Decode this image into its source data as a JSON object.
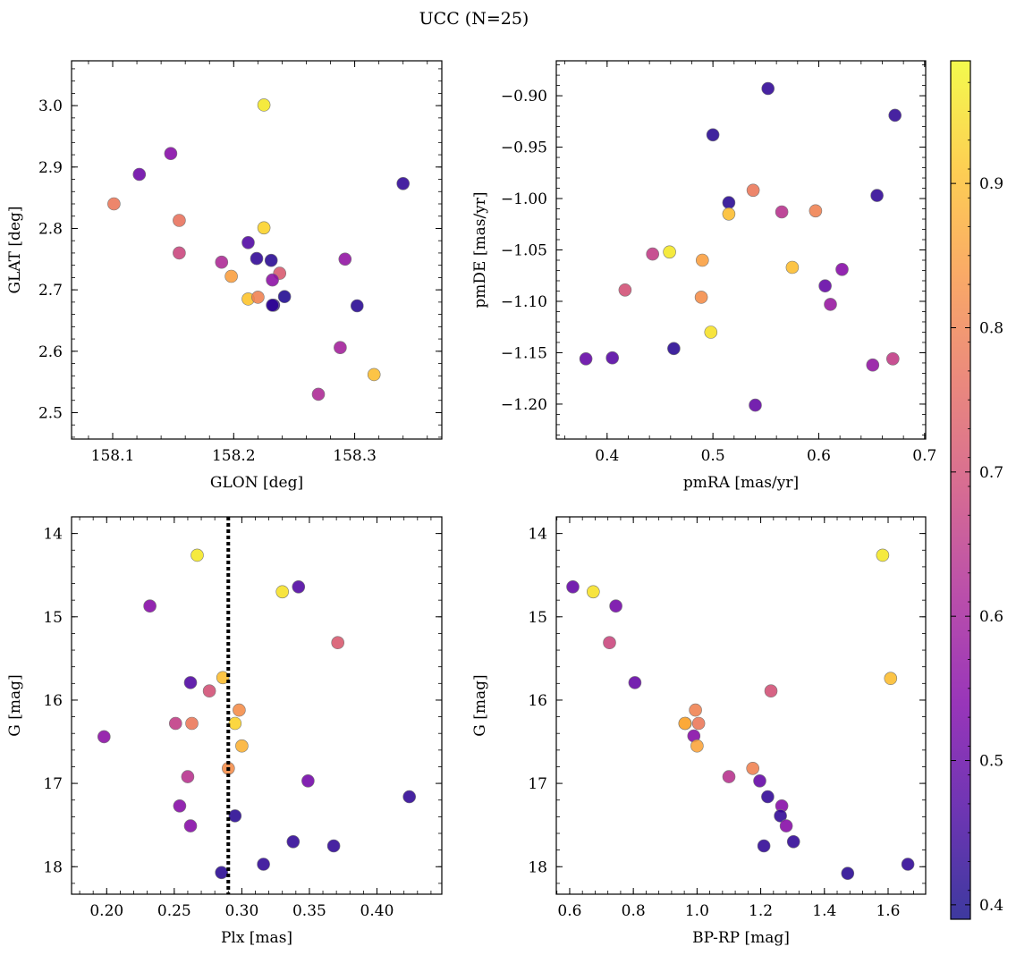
{
  "title": "UCC (N=25)",
  "colorbar": {
    "colormap": "plasma",
    "range": [
      0.39,
      0.985
    ],
    "ticks": [
      0.4,
      0.5,
      0.6,
      0.7,
      0.8,
      0.9
    ]
  },
  "chart_data": [
    {
      "type": "scatter",
      "xlabel": "GLON [deg]",
      "ylabel": "GLAT [deg]",
      "xlim": [
        158.066,
        158.372
      ],
      "ylim": [
        2.457,
        3.073
      ],
      "y_inverted": false,
      "xticks": [
        158.1,
        158.2,
        158.3
      ],
      "xtick_labels": [
        "158.1",
        "158.2",
        "158.3"
      ],
      "yticks": [
        2.5,
        2.6,
        2.7,
        2.8,
        2.9,
        3.0
      ],
      "ytick_labels": [
        "2.5",
        "2.6",
        "2.7",
        "2.8",
        "2.9",
        "3.0"
      ],
      "x": [
        158.225,
        158.225,
        158.212,
        158.101,
        158.155,
        158.155,
        158.19,
        158.198,
        158.22,
        158.238,
        158.148,
        158.122,
        158.212,
        158.232,
        158.233,
        158.292,
        158.288,
        158.27,
        158.219,
        158.231,
        158.242,
        158.232,
        158.302,
        158.34,
        158.316
      ],
      "y": [
        3.001,
        2.801,
        2.685,
        2.84,
        2.813,
        2.76,
        2.745,
        2.722,
        2.688,
        2.727,
        2.922,
        2.888,
        2.777,
        2.716,
        2.675,
        2.75,
        2.606,
        2.53,
        2.751,
        2.748,
        2.689,
        2.675,
        2.674,
        2.873,
        2.562
      ],
      "color_values": [
        0.96,
        0.93,
        0.91,
        0.78,
        0.77,
        0.68,
        0.62,
        0.85,
        0.8,
        0.72,
        0.55,
        0.51,
        0.47,
        0.56,
        0.42,
        0.57,
        0.6,
        0.62,
        0.43,
        0.42,
        0.41,
        0.43,
        0.42,
        0.43,
        0.9
      ]
    },
    {
      "type": "scatter",
      "xlabel": "pmRA [mas/yr]",
      "ylabel": "pmDE [mas/yr]",
      "xlim": [
        0.352,
        0.701
      ],
      "ylim": [
        -1.234,
        -0.866
      ],
      "y_inverted": false,
      "xticks": [
        0.4,
        0.5,
        0.6,
        0.7
      ],
      "xtick_labels": [
        "0.4",
        "0.5",
        "0.6",
        "0.7"
      ],
      "yticks": [
        -1.2,
        -1.15,
        -1.1,
        -1.05,
        -1.0,
        -0.95,
        -0.9
      ],
      "ytick_labels": [
        "−1.20",
        "−1.15",
        "−1.10",
        "−1.05",
        "−1.00",
        "−0.95",
        "−0.90"
      ],
      "x": [
        0.552,
        0.672,
        0.5,
        0.515,
        0.538,
        0.515,
        0.565,
        0.597,
        0.655,
        0.459,
        0.443,
        0.49,
        0.575,
        0.622,
        0.417,
        0.489,
        0.606,
        0.611,
        0.498,
        0.463,
        0.38,
        0.405,
        0.651,
        0.67,
        0.54
      ],
      "y": [
        -0.893,
        -0.919,
        -0.938,
        -1.004,
        -0.992,
        -1.015,
        -1.013,
        -1.012,
        -0.997,
        -1.052,
        -1.054,
        -1.06,
        -1.067,
        -1.069,
        -1.089,
        -1.096,
        -1.085,
        -1.103,
        -1.13,
        -1.146,
        -1.156,
        -1.155,
        -1.162,
        -1.156,
        -1.201
      ],
      "color_values": [
        0.43,
        0.43,
        0.42,
        0.42,
        0.78,
        0.9,
        0.64,
        0.8,
        0.43,
        0.96,
        0.66,
        0.85,
        0.9,
        0.55,
        0.7,
        0.82,
        0.5,
        0.58,
        0.95,
        0.42,
        0.5,
        0.48,
        0.57,
        0.66,
        0.5
      ]
    },
    {
      "type": "scatter",
      "xlabel": "Plx [mas]",
      "ylabel": "G [mag]",
      "xlim": [
        0.174,
        0.448
      ],
      "ylim": [
        13.8,
        18.33
      ],
      "y_inverted": true,
      "xticks": [
        0.2,
        0.25,
        0.3,
        0.35,
        0.4
      ],
      "xtick_labels": [
        "0.20",
        "0.25",
        "0.30",
        "0.35",
        "0.40"
      ],
      "yticks": [
        14,
        15,
        16,
        17,
        18
      ],
      "ytick_labels": [
        "14",
        "15",
        "16",
        "17",
        "18"
      ],
      "vline": 0.29,
      "x": [
        0.267,
        0.342,
        0.33,
        0.232,
        0.371,
        0.262,
        0.286,
        0.276,
        0.298,
        0.295,
        0.251,
        0.263,
        0.3,
        0.198,
        0.29,
        0.26,
        0.349,
        0.424,
        0.254,
        0.295,
        0.262,
        0.338,
        0.368,
        0.316,
        0.285
      ],
      "y": [
        14.26,
        14.64,
        14.7,
        14.87,
        15.31,
        15.79,
        15.73,
        15.89,
        16.12,
        16.28,
        16.28,
        16.28,
        16.55,
        16.44,
        16.82,
        16.92,
        16.97,
        17.16,
        17.27,
        17.39,
        17.51,
        17.7,
        17.75,
        17.97,
        18.07
      ],
      "color_values": [
        0.96,
        0.47,
        0.95,
        0.55,
        0.72,
        0.47,
        0.9,
        0.7,
        0.82,
        0.93,
        0.66,
        0.78,
        0.88,
        0.56,
        0.82,
        0.64,
        0.52,
        0.43,
        0.55,
        0.42,
        0.55,
        0.43,
        0.43,
        0.43,
        0.42
      ]
    },
    {
      "type": "scatter",
      "xlabel": "BP-RP [mag]",
      "ylabel": "G [mag]",
      "xlim": [
        0.558,
        1.718
      ],
      "ylim": [
        13.8,
        18.33
      ],
      "y_inverted": true,
      "xticks": [
        0.6,
        0.8,
        1.0,
        1.2,
        1.4,
        1.6
      ],
      "xtick_labels": [
        "0.6",
        "0.8",
        "1.0",
        "1.2",
        "1.4",
        "1.6"
      ],
      "yticks": [
        14,
        15,
        16,
        17,
        18
      ],
      "ytick_labels": [
        "14",
        "15",
        "16",
        "17",
        "18"
      ],
      "x": [
        1.583,
        0.61,
        0.674,
        0.745,
        0.725,
        0.805,
        1.608,
        1.232,
        0.995,
        0.963,
        1.005,
        0.99,
        1.0,
        1.1,
        1.175,
        1.197,
        1.222,
        1.266,
        1.262,
        1.28,
        1.303,
        1.21,
        1.473,
        1.662,
        0.962
      ],
      "y": [
        14.26,
        14.64,
        14.7,
        14.87,
        15.31,
        15.79,
        15.74,
        15.89,
        16.12,
        16.28,
        16.28,
        16.43,
        16.55,
        16.92,
        16.82,
        16.97,
        17.16,
        17.27,
        17.39,
        17.51,
        17.7,
        17.75,
        18.08,
        17.97,
        16.28
      ],
      "color_values": [
        0.96,
        0.5,
        0.95,
        0.52,
        0.68,
        0.5,
        0.9,
        0.7,
        0.8,
        0.85,
        0.78,
        0.55,
        0.86,
        0.64,
        0.8,
        0.5,
        0.43,
        0.55,
        0.43,
        0.55,
        0.43,
        0.43,
        0.42,
        0.43,
        0.87
      ]
    }
  ]
}
